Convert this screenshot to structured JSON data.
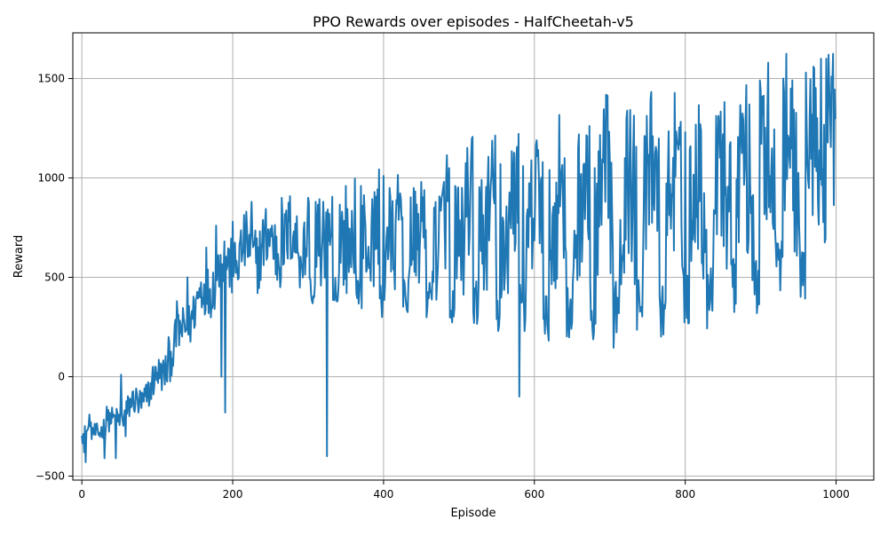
{
  "chart_data": {
    "type": "line",
    "title": "PPO Rewards over episodes - HalfCheetah-v5",
    "xlabel": "Episode",
    "ylabel": "Reward",
    "xlim": [
      -12,
      1050
    ],
    "ylim": [
      -520,
      1730
    ],
    "xticks": [
      0,
      200,
      400,
      600,
      800,
      1000
    ],
    "yticks": [
      -500,
      0,
      500,
      1000,
      1500
    ],
    "xtick_labels": [
      "0",
      "200",
      "400",
      "600",
      "800",
      "1000"
    ],
    "ytick_labels": [
      "−500",
      "0",
      "500",
      "1000",
      "1500"
    ],
    "grid": true,
    "line_color": "#1f77b4",
    "series_length": 1000,
    "trend": [
      [
        0,
        -300
      ],
      [
        20,
        -270
      ],
      [
        40,
        -230
      ],
      [
        60,
        -170
      ],
      [
        80,
        -110
      ],
      [
        100,
        -20
      ],
      [
        120,
        120
      ],
      [
        140,
        280
      ],
      [
        160,
        410
      ],
      [
        180,
        530
      ],
      [
        200,
        590
      ],
      [
        230,
        640
      ],
      [
        260,
        670
      ],
      [
        300,
        690
      ],
      [
        330,
        700
      ],
      [
        360,
        720
      ],
      [
        400,
        740
      ],
      [
        450,
        760
      ],
      [
        500,
        780
      ],
      [
        550,
        800
      ],
      [
        600,
        820
      ],
      [
        650,
        840
      ],
      [
        700,
        860
      ],
      [
        750,
        880
      ],
      [
        800,
        910
      ],
      [
        850,
        960
      ],
      [
        900,
        1030
      ],
      [
        950,
        1100
      ],
      [
        999,
        1120
      ]
    ],
    "notable_points": [
      [
        0,
        -300
      ],
      [
        3,
        -380
      ],
      [
        5,
        -430
      ],
      [
        10,
        -190
      ],
      [
        30,
        -410
      ],
      [
        33,
        -150
      ],
      [
        45,
        -410
      ],
      [
        52,
        10
      ],
      [
        58,
        -300
      ],
      [
        75,
        -180
      ],
      [
        90,
        -110
      ],
      [
        100,
        20
      ],
      [
        115,
        200
      ],
      [
        126,
        380
      ],
      [
        140,
        500
      ],
      [
        165,
        650
      ],
      [
        178,
        760
      ],
      [
        185,
        0
      ],
      [
        190,
        -180
      ],
      [
        200,
        780
      ],
      [
        225,
        880
      ],
      [
        265,
        900
      ],
      [
        300,
        900
      ],
      [
        310,
        880
      ],
      [
        320,
        880
      ],
      [
        325,
        -400
      ],
      [
        328,
        820
      ],
      [
        350,
        960
      ],
      [
        370,
        960
      ],
      [
        400,
        1010
      ],
      [
        408,
        950
      ],
      [
        440,
        950
      ],
      [
        450,
        980
      ],
      [
        480,
        980
      ],
      [
        495,
        960
      ],
      [
        530,
        990
      ],
      [
        545,
        1030
      ],
      [
        555,
        1070
      ],
      [
        580,
        -100
      ],
      [
        585,
        1060
      ],
      [
        620,
        1040
      ],
      [
        640,
        1100
      ],
      [
        680,
        1050
      ],
      [
        700,
        1090
      ],
      [
        720,
        1100
      ],
      [
        760,
        1120
      ],
      [
        790,
        1180
      ],
      [
        800,
        1230
      ],
      [
        820,
        1270
      ],
      [
        845,
        1240
      ],
      [
        850,
        1220
      ],
      [
        860,
        1180
      ],
      [
        880,
        1290
      ],
      [
        885,
        1370
      ],
      [
        900,
        1440
      ],
      [
        910,
        1580
      ],
      [
        930,
        1500
      ],
      [
        940,
        1450
      ],
      [
        960,
        1530
      ],
      [
        970,
        1560
      ],
      [
        980,
        1600
      ],
      [
        987,
        1600
      ],
      [
        990,
        1620
      ],
      [
        994,
        1510
      ],
      [
        999,
        1300
      ]
    ]
  }
}
